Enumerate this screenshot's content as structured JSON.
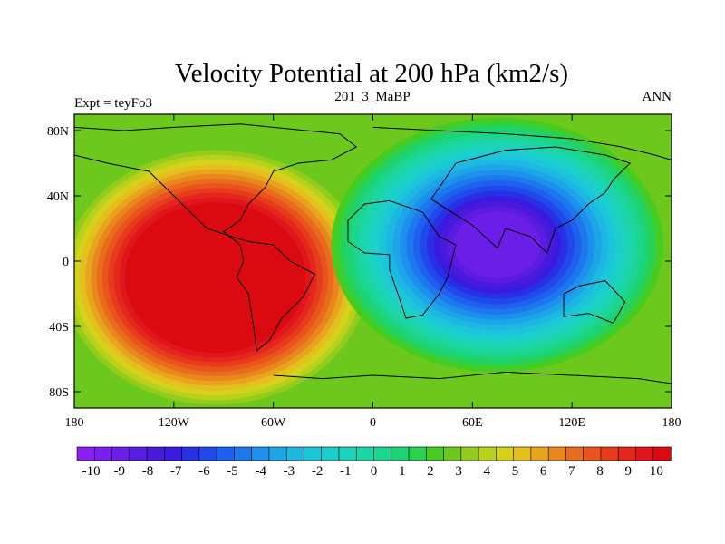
{
  "chart_data": {
    "type": "heatmap",
    "title": "Velocity Potential at 200 hPa (km2/s)",
    "subtitle_left": "Expt = teyFo3",
    "subtitle_center": "201_3_MaBP",
    "subtitle_right": "ANN",
    "x_ticks": [
      {
        "value": -180,
        "label": "180"
      },
      {
        "value": -120,
        "label": "120W"
      },
      {
        "value": -60,
        "label": "60W"
      },
      {
        "value": 0,
        "label": "0"
      },
      {
        "value": 60,
        "label": "60E"
      },
      {
        "value": 120,
        "label": "120E"
      },
      {
        "value": 180,
        "label": "180"
      }
    ],
    "y_ticks": [
      {
        "value": 80,
        "label": "80N"
      },
      {
        "value": 40,
        "label": "40N"
      },
      {
        "value": 0,
        "label": "0"
      },
      {
        "value": -40,
        "label": "40S"
      },
      {
        "value": -80,
        "label": "80S"
      }
    ],
    "xlim": [
      -180,
      180
    ],
    "ylim": [
      -90,
      90
    ],
    "colorbar": {
      "min": -10.5,
      "max": 10.5,
      "step": 0.5,
      "labels": [
        "-10",
        "-9",
        "-8",
        "-7",
        "-6",
        "-5",
        "-4",
        "-3",
        "-2",
        "-1",
        "0",
        "1",
        "2",
        "3",
        "4",
        "5",
        "6",
        "7",
        "8",
        "9",
        "10"
      ],
      "colors": [
        "#8a20f0",
        "#7a20ee",
        "#6a1ee8",
        "#5a1ce2",
        "#4a1adc",
        "#3a1ae0",
        "#2830e6",
        "#2048ea",
        "#1f60ee",
        "#1d78ee",
        "#1c90ec",
        "#1ca6e8",
        "#1cb8e2",
        "#1cc6da",
        "#1ccfcc",
        "#1cd4bc",
        "#1cd6a8",
        "#1cd690",
        "#1cd474",
        "#2ad050",
        "#44cc20",
        "#6cc81c",
        "#94cc1c",
        "#b8d21c",
        "#d6d21c",
        "#e4c01c",
        "#e8a41c",
        "#e8881c",
        "#e86c1c",
        "#e8541c",
        "#e63c1c",
        "#e4261c",
        "#e0161c",
        "#da0a10"
      ]
    },
    "fields": [
      {
        "name": "western-hemisphere-maximum",
        "lon": -95,
        "lat": -10,
        "value": 10.3
      },
      {
        "name": "eastern-hemisphere-minimum",
        "lon": 75,
        "lat": 10,
        "value": -9.6
      }
    ]
  }
}
